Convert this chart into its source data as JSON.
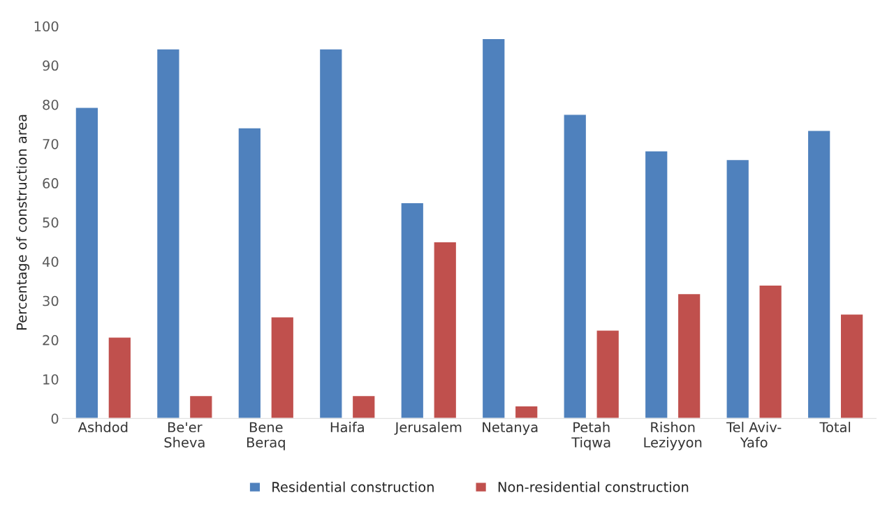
{
  "chart_data": {
    "type": "bar",
    "ylabel": "Percentage of construction area",
    "categories": [
      "Ashdod",
      "Be'er\nSheva",
      "Bene\nBeraq",
      "Haifa",
      "Jerusalem",
      "Netanya",
      "Petah\nTiqwa",
      "Rishon\nLeziyyon",
      "Tel Aviv-\nYafo",
      "Total"
    ],
    "series": [
      {
        "name": "Residential construction",
        "color": "#4f81bd",
        "values": [
          79.3,
          94.2,
          74.1,
          94.2,
          55.0,
          96.8,
          77.5,
          68.2,
          66.0,
          73.4
        ]
      },
      {
        "name": "Non-residential construction",
        "color": "#c0504d",
        "values": [
          20.7,
          5.8,
          25.9,
          5.8,
          45.0,
          3.2,
          22.5,
          31.8,
          34.0,
          26.6
        ]
      }
    ],
    "ylim": [
      0,
      100
    ],
    "yticks": [
      0,
      10,
      20,
      30,
      40,
      50,
      60,
      70,
      80,
      90,
      100
    ],
    "grid": false,
    "legend": "bottom"
  }
}
